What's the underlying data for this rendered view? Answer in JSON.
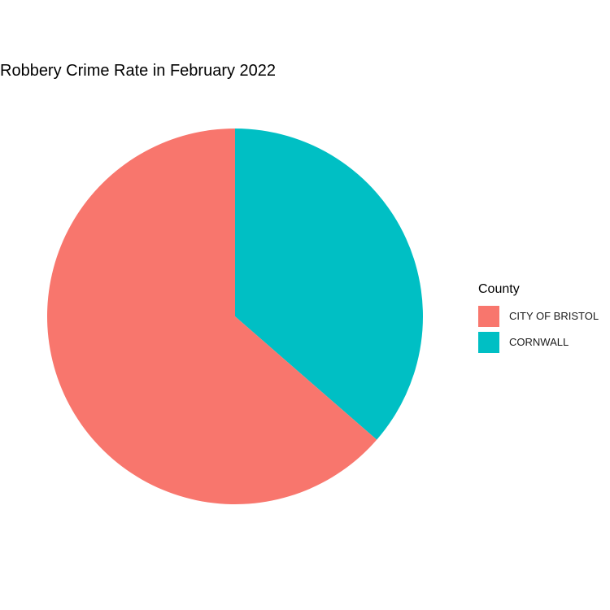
{
  "chart_data": {
    "type": "pie",
    "title": "Robbery Crime Rate in February 2022",
    "categories": [
      "CITY OF BRISTOL",
      "CORNWALL"
    ],
    "values": [
      63.6,
      36.4
    ],
    "colors": [
      "#F8766D",
      "#00BFC4"
    ],
    "start_angle_deg": 0,
    "direction": "counterclockwise",
    "legend": {
      "title": "County",
      "placement": "right"
    }
  }
}
